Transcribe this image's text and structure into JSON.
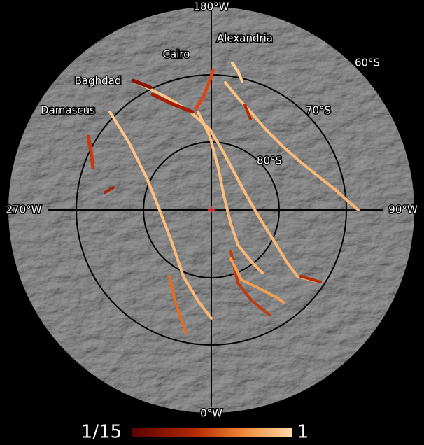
{
  "map": {
    "meridians": {
      "top": "180°W",
      "bottom": "0°W",
      "left": "270°W",
      "right": "90°W"
    },
    "latitudes": {
      "outer": "60°S",
      "middle": "70°S",
      "inner": "80°S"
    },
    "stripes": [
      "Alexandria",
      "Cairo",
      "Baghdad",
      "Damascus"
    ],
    "colorbar": {
      "min_label": "1/15",
      "max_label": "1"
    }
  }
}
